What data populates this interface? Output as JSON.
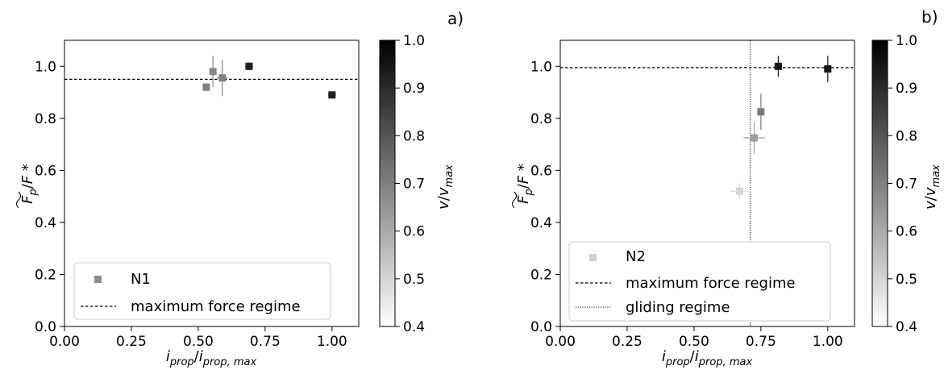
{
  "chart_data": [
    {
      "type": "scatter",
      "panel_label": "a)",
      "x_ticks": [
        "0.00",
        "0.25",
        "0.50",
        "0.75",
        "1.00"
      ],
      "y_ticks": [
        "0.0",
        "0.2",
        "0.4",
        "0.6",
        "0.8",
        "1.0"
      ],
      "xlim": [
        0.0,
        1.1
      ],
      "ylim": [
        0.0,
        1.1
      ],
      "grid": false,
      "legend_position": "bottom-left",
      "series": [
        {
          "name": "N1",
          "legend_color": "#8c8c8c",
          "points": [
            {
              "x": 0.53,
              "y": 0.92,
              "xerr": 0.01,
              "yerr": 0.015,
              "v": 0.7
            },
            {
              "x": 0.555,
              "y": 0.98,
              "xerr": 0.01,
              "yerr": 0.06,
              "v": 0.68
            },
            {
              "x": 0.59,
              "y": 0.955,
              "xerr": 0.02,
              "yerr": 0.07,
              "v": 0.7
            },
            {
              "x": 0.69,
              "y": 1.0,
              "xerr": 0.015,
              "yerr": 0.015,
              "v": 0.92
            },
            {
              "x": 1.0,
              "y": 0.89,
              "xerr": 0.015,
              "yerr": 0.012,
              "v": 0.92
            }
          ]
        }
      ],
      "lines": [
        {
          "name": "maximum force regime",
          "orientation": "horizontal",
          "value": 0.95,
          "style": "dashed"
        }
      ],
      "colorbar": {
        "range": [
          0.4,
          1.0
        ],
        "ticks": [
          "0.4",
          "0.5",
          "0.6",
          "0.7",
          "0.8",
          "0.9",
          "1.0"
        ]
      }
    },
    {
      "type": "scatter",
      "panel_label": "b)",
      "x_ticks": [
        "0.00",
        "0.25",
        "0.50",
        "0.75",
        "1.00"
      ],
      "y_ticks": [
        "0.0",
        "0.2",
        "0.4",
        "0.6",
        "0.8",
        "1.0"
      ],
      "xlim": [
        0.0,
        1.1
      ],
      "ylim": [
        0.0,
        1.1
      ],
      "grid": false,
      "legend_position": "bottom-left",
      "series": [
        {
          "name": "N2",
          "legend_color": "#d0d0d0",
          "points": [
            {
              "x": 0.67,
              "y": 0.52,
              "xerr": 0.035,
              "yerr": 0.03,
              "v": 0.5
            },
            {
              "x": 0.725,
              "y": 0.725,
              "xerr": 0.04,
              "yerr": 0.06,
              "v": 0.63
            },
            {
              "x": 0.75,
              "y": 0.825,
              "xerr": 0.01,
              "yerr": 0.07,
              "v": 0.72
            },
            {
              "x": 0.815,
              "y": 1.0,
              "xerr": 0.015,
              "yerr": 0.04,
              "v": 0.95
            },
            {
              "x": 1.0,
              "y": 0.99,
              "xerr": 0.01,
              "yerr": 0.05,
              "v": 0.95
            }
          ]
        }
      ],
      "lines": [
        {
          "name": "maximum force regime",
          "orientation": "horizontal",
          "value": 0.995,
          "style": "dashed"
        },
        {
          "name": "gliding regime",
          "orientation": "vertical",
          "value": 0.71,
          "style": "dotted"
        }
      ],
      "colorbar": {
        "range": [
          0.4,
          1.0
        ],
        "ticks": [
          "0.4",
          "0.5",
          "0.6",
          "0.7",
          "0.8",
          "0.9",
          "1.0"
        ]
      }
    }
  ]
}
